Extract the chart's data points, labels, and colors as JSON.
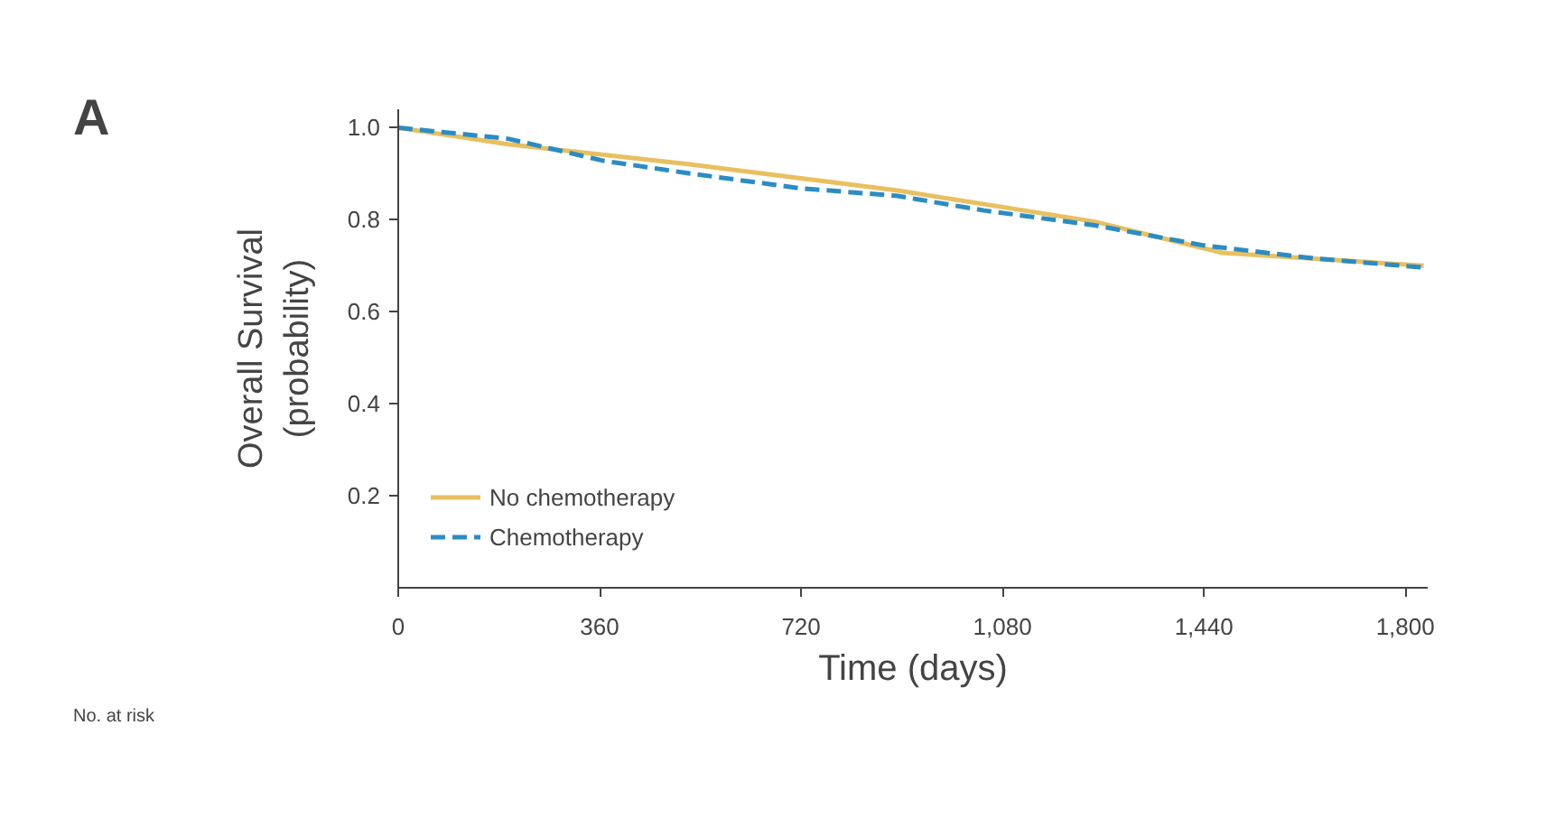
{
  "chart_data": {
    "type": "line",
    "xlabel": "Time (days)",
    "ylabel": "Overall Survival\n(probability)",
    "annotations": [
      "A",
      "No. at risk"
    ],
    "xlim": [
      0,
      1840
    ],
    "ylim": [
      0,
      1.04
    ],
    "xticks": [
      0,
      360,
      720,
      {
        "value": 1080,
        "label": "1,080"
      },
      {
        "value": 1440,
        "label": "1,440"
      },
      {
        "value": 1800,
        "label": "1,800"
      }
    ],
    "yticks": [
      0.2,
      0.4,
      0.6,
      0.8,
      {
        "value": 1,
        "label": "1.0"
      }
    ],
    "grid": false,
    "legend": "bottom left",
    "marker": "none",
    "series": [
      {
        "name": "No chemotherapy",
        "color": "#e8c060",
        "line_style": "solid",
        "x": [
          0,
          196,
          524,
          890,
          1244,
          1473,
          1833
        ],
        "values": [
          1.0,
          0.964,
          0.92,
          0.864,
          0.796,
          0.728,
          0.7
        ]
      },
      {
        "name": "Chemotherapy",
        "color": "#2b8cc4",
        "line_style": "dashed",
        "x": [
          0,
          196,
          367,
          524,
          720,
          890,
          1047,
          1244,
          1440,
          1636,
          1833
        ],
        "values": [
          1.0,
          0.976,
          0.928,
          0.9,
          0.868,
          0.852,
          0.82,
          0.788,
          0.744,
          0.716,
          0.696
        ]
      }
    ]
  }
}
